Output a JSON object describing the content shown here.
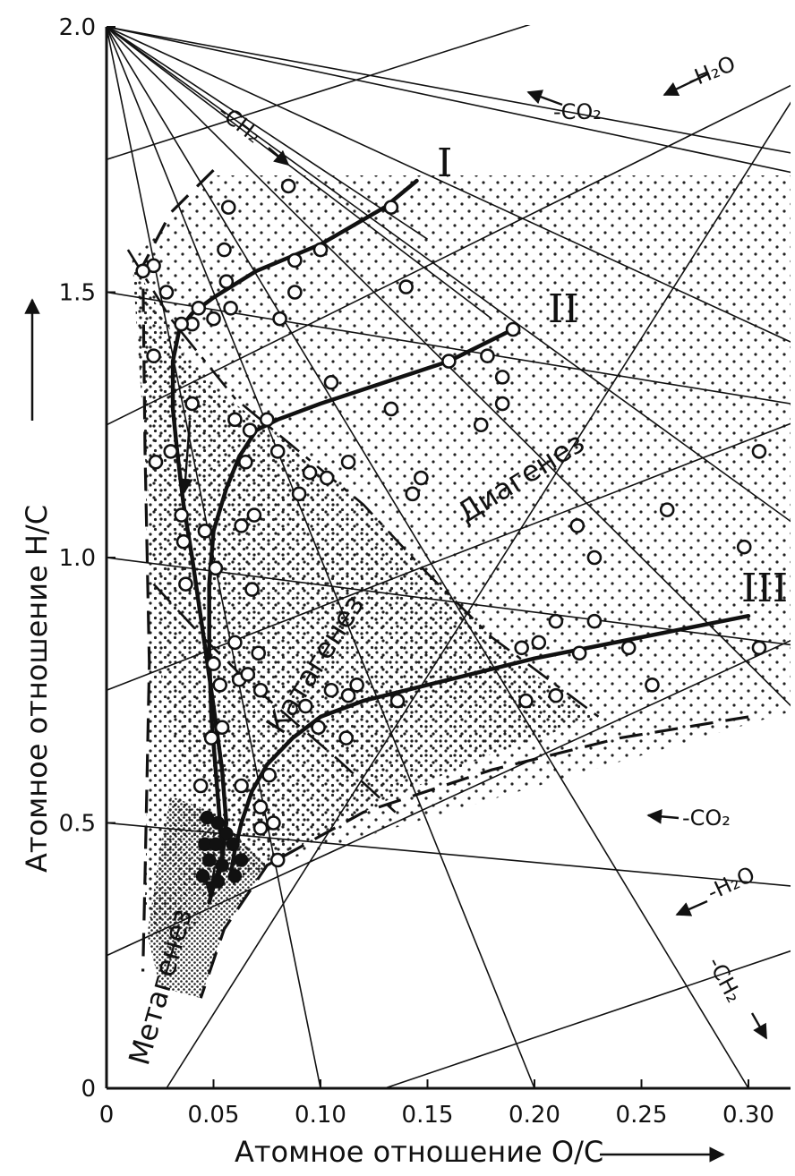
{
  "chart_data": {
    "type": "scatter",
    "xlabel": "Атомное отношение  O/C",
    "ylabel": "Атомное отношение  H/C",
    "xlim": [
      0,
      0.31
    ],
    "ylim": [
      0,
      2.0
    ],
    "x_ticks": [
      "0",
      "0.05",
      "0.10",
      "0.15",
      "0.20",
      "0.25",
      "0.30"
    ],
    "y_ticks": [
      "0",
      "0.5",
      "1.0",
      "1.5",
      "2.0"
    ],
    "zones": {
      "diagenesis": "Диагенез",
      "catagenesis": "Катагенез",
      "metagenesis": "Метагенез"
    },
    "reactions": {
      "h2o_top": "-H₂O",
      "co2_top": "-CO₂",
      "ch2_top": "-CH₂",
      "co2_right": "-CO₂",
      "h2o_right": "-H₂O",
      "ch2_bottom": "-CH₂"
    },
    "series": [
      {
        "name": "I",
        "path": [
          [
            0.145,
            1.71
          ],
          [
            0.13,
            1.66
          ],
          [
            0.1,
            1.59
          ],
          [
            0.07,
            1.54
          ],
          [
            0.05,
            1.49
          ],
          [
            0.04,
            1.46
          ],
          [
            0.034,
            1.43
          ],
          [
            0.031,
            1.37
          ],
          [
            0.031,
            1.28
          ],
          [
            0.033,
            1.2
          ],
          [
            0.036,
            1.1
          ],
          [
            0.04,
            1.0
          ],
          [
            0.045,
            0.86
          ],
          [
            0.05,
            0.72
          ],
          [
            0.054,
            0.6
          ],
          [
            0.056,
            0.5
          ],
          [
            0.054,
            0.43
          ],
          [
            0.05,
            0.38
          ],
          [
            0.048,
            0.35
          ]
        ]
      },
      {
        "name": "II",
        "path": [
          [
            0.19,
            1.43
          ],
          [
            0.16,
            1.37
          ],
          [
            0.13,
            1.33
          ],
          [
            0.1,
            1.29
          ],
          [
            0.08,
            1.26
          ],
          [
            0.07,
            1.24
          ],
          [
            0.062,
            1.19
          ],
          [
            0.056,
            1.13
          ],
          [
            0.05,
            1.05
          ],
          [
            0.048,
            0.95
          ],
          [
            0.048,
            0.82
          ],
          [
            0.049,
            0.7
          ],
          [
            0.051,
            0.6
          ],
          [
            0.053,
            0.5
          ],
          [
            0.054,
            0.44
          ],
          [
            0.052,
            0.39
          ]
        ]
      },
      {
        "name": "III",
        "path": [
          [
            0.3,
            0.89
          ],
          [
            0.25,
            0.85
          ],
          [
            0.2,
            0.81
          ],
          [
            0.16,
            0.77
          ],
          [
            0.12,
            0.73
          ],
          [
            0.1,
            0.7
          ],
          [
            0.087,
            0.66
          ],
          [
            0.075,
            0.61
          ],
          [
            0.068,
            0.56
          ],
          [
            0.063,
            0.5
          ],
          [
            0.06,
            0.45
          ],
          [
            0.058,
            0.4
          ]
        ]
      }
    ],
    "points_open": [
      [
        0.085,
        1.7
      ],
      [
        0.057,
        1.66
      ],
      [
        0.055,
        1.58
      ],
      [
        0.056,
        1.52
      ],
      [
        0.058,
        1.47
      ],
      [
        0.043,
        1.47
      ],
      [
        0.05,
        1.45
      ],
      [
        0.04,
        1.44
      ],
      [
        0.035,
        1.44
      ],
      [
        0.028,
        1.5
      ],
      [
        0.022,
        1.55
      ],
      [
        0.017,
        1.54
      ],
      [
        0.022,
        1.38
      ],
      [
        0.133,
        1.66
      ],
      [
        0.1,
        1.58
      ],
      [
        0.088,
        1.56
      ],
      [
        0.088,
        1.5
      ],
      [
        0.14,
        1.51
      ],
      [
        0.081,
        1.45
      ],
      [
        0.19,
        1.43
      ],
      [
        0.178,
        1.38
      ],
      [
        0.16,
        1.37
      ],
      [
        0.185,
        1.34
      ],
      [
        0.105,
        1.33
      ],
      [
        0.185,
        1.29
      ],
      [
        0.175,
        1.25
      ],
      [
        0.133,
        1.28
      ],
      [
        0.04,
        1.29
      ],
      [
        0.06,
        1.26
      ],
      [
        0.067,
        1.24
      ],
      [
        0.075,
        1.26
      ],
      [
        0.065,
        1.18
      ],
      [
        0.08,
        1.2
      ],
      [
        0.03,
        1.2
      ],
      [
        0.023,
        1.18
      ],
      [
        0.113,
        1.18
      ],
      [
        0.095,
        1.16
      ],
      [
        0.103,
        1.15
      ],
      [
        0.09,
        1.12
      ],
      [
        0.147,
        1.15
      ],
      [
        0.143,
        1.12
      ],
      [
        0.035,
        1.08
      ],
      [
        0.036,
        1.03
      ],
      [
        0.046,
        1.05
      ],
      [
        0.063,
        1.06
      ],
      [
        0.069,
        1.08
      ],
      [
        0.051,
        0.98
      ],
      [
        0.037,
        0.95
      ],
      [
        0.068,
        0.94
      ],
      [
        0.22,
        1.06
      ],
      [
        0.228,
        1.0
      ],
      [
        0.262,
        1.09
      ],
      [
        0.305,
        1.2
      ],
      [
        0.298,
        1.02
      ],
      [
        0.21,
        0.88
      ],
      [
        0.228,
        0.88
      ],
      [
        0.221,
        0.82
      ],
      [
        0.244,
        0.83
      ],
      [
        0.194,
        0.83
      ],
      [
        0.202,
        0.84
      ],
      [
        0.305,
        0.83
      ],
      [
        0.05,
        0.8
      ],
      [
        0.06,
        0.84
      ],
      [
        0.071,
        0.82
      ],
      [
        0.053,
        0.76
      ],
      [
        0.062,
        0.77
      ],
      [
        0.066,
        0.78
      ],
      [
        0.072,
        0.75
      ],
      [
        0.093,
        0.72
      ],
      [
        0.105,
        0.75
      ],
      [
        0.113,
        0.74
      ],
      [
        0.117,
        0.76
      ],
      [
        0.136,
        0.73
      ],
      [
        0.196,
        0.73
      ],
      [
        0.21,
        0.74
      ],
      [
        0.255,
        0.76
      ],
      [
        0.049,
        0.66
      ],
      [
        0.054,
        0.68
      ],
      [
        0.099,
        0.68
      ],
      [
        0.112,
        0.66
      ],
      [
        0.076,
        0.59
      ],
      [
        0.063,
        0.57
      ],
      [
        0.072,
        0.53
      ],
      [
        0.044,
        0.57
      ],
      [
        0.072,
        0.49
      ],
      [
        0.078,
        0.5
      ],
      [
        0.08,
        0.43
      ]
    ],
    "points_filled": [
      [
        0.047,
        0.51
      ],
      [
        0.052,
        0.5
      ],
      [
        0.056,
        0.48
      ],
      [
        0.046,
        0.46
      ],
      [
        0.051,
        0.46
      ],
      [
        0.059,
        0.46
      ],
      [
        0.048,
        0.43
      ],
      [
        0.054,
        0.42
      ],
      [
        0.063,
        0.43
      ],
      [
        0.045,
        0.4
      ],
      [
        0.052,
        0.39
      ],
      [
        0.06,
        0.4
      ]
    ]
  }
}
